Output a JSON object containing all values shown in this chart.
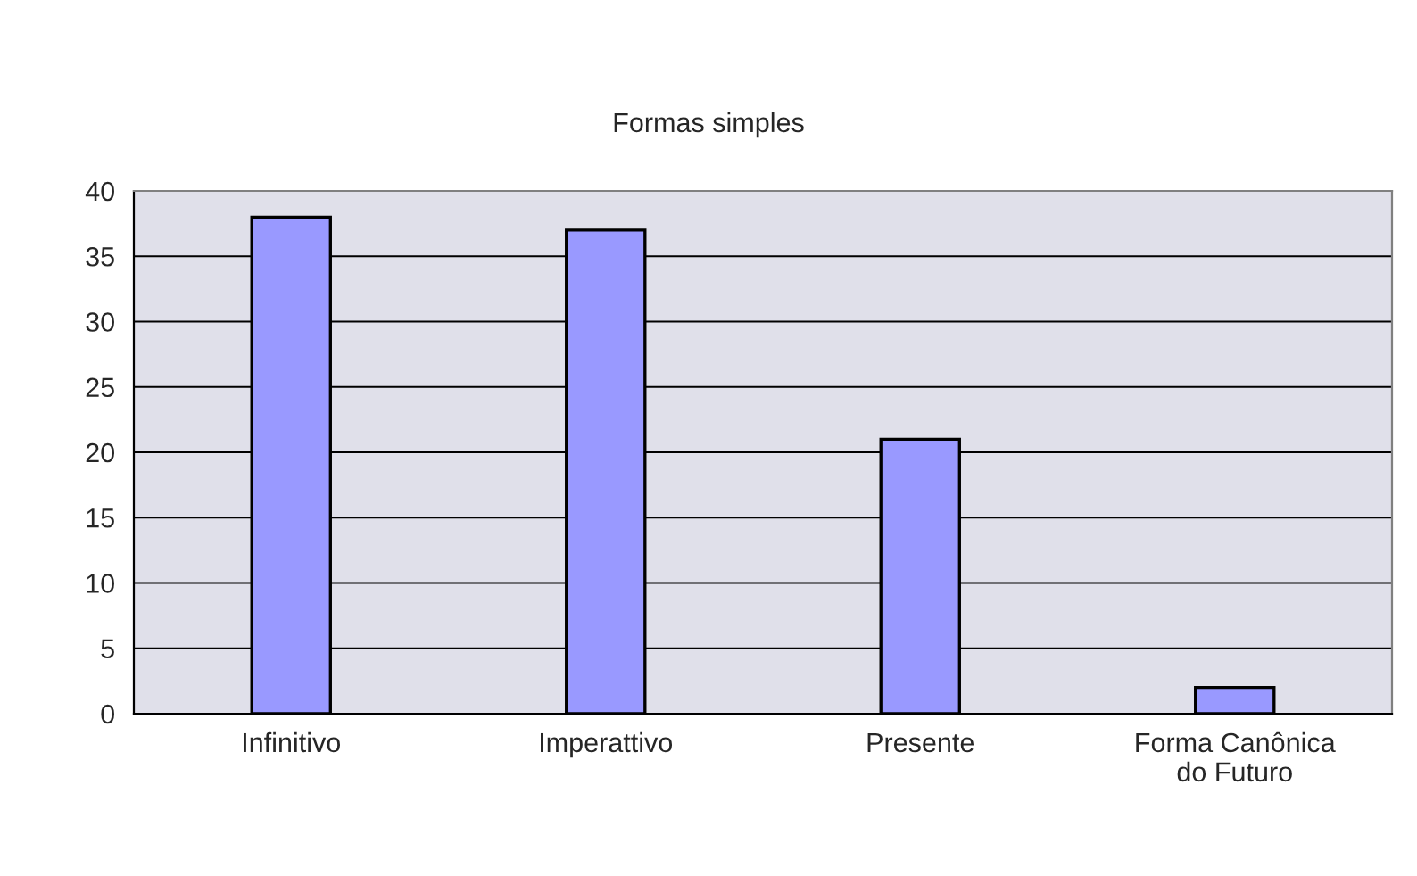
{
  "chart_data": {
    "type": "bar",
    "title": "Formas simples",
    "categories": [
      "Infinitivo",
      "Imperattivo",
      "Presente",
      "Forma Canônica\ndo Futuro"
    ],
    "values": [
      38,
      37,
      21,
      2
    ],
    "color": "#9999ff",
    "ylim": [
      0,
      40
    ],
    "yticks": [
      0,
      5,
      10,
      15,
      20,
      25,
      30,
      35,
      40
    ],
    "grid": "y",
    "legend": false
  }
}
